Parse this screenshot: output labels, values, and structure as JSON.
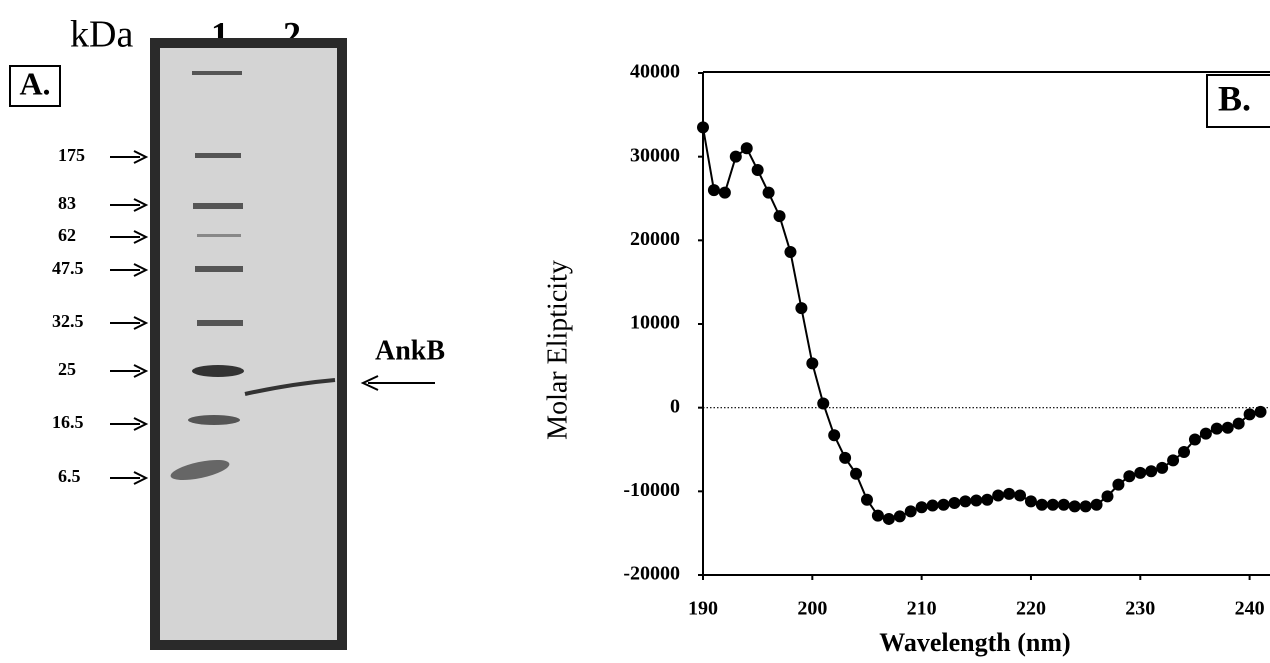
{
  "panel_a": {
    "label": "A.",
    "unit": "kDa",
    "lanes": [
      "1",
      "2"
    ],
    "markers": [
      "175",
      "83",
      "62",
      "47.5",
      "32.5",
      "25",
      "16.5",
      "6.5"
    ],
    "band_label": "AnkB"
  },
  "chart_data": {
    "type": "line",
    "panel_label": "B.",
    "x_label": "Wavelength (nm)",
    "y_label": "Molar Elipticity",
    "x": [
      190,
      191,
      192,
      193,
      194,
      195,
      196,
      197,
      198,
      199,
      200,
      201,
      202,
      203,
      204,
      205,
      206,
      207,
      208,
      209,
      210,
      211,
      212,
      213,
      214,
      215,
      216,
      217,
      218,
      219,
      220,
      221,
      222,
      223,
      224,
      225,
      226,
      227,
      228,
      229,
      230,
      231,
      232,
      233,
      234,
      235,
      236,
      237,
      238,
      239,
      240,
      241
    ],
    "values": [
      33500,
      26000,
      25700,
      30000,
      31000,
      28400,
      25700,
      22900,
      18600,
      11900,
      5300,
      500,
      -3300,
      -6000,
      -7900,
      -11000,
      -12900,
      -13300,
      -13000,
      -12400,
      -11900,
      -11700,
      -11600,
      -11400,
      -11200,
      -11100,
      -11000,
      -10500,
      -10300,
      -10500,
      -11200,
      -11600,
      -11600,
      -11600,
      -11800,
      -11800,
      -11600,
      -10600,
      -9200,
      -8200,
      -7800,
      -7600,
      -7200,
      -6300,
      -5300,
      -3800,
      -3100,
      -2500,
      -2400,
      -1900,
      -800,
      -500
    ],
    "color": "#000000",
    "xlim": [
      190,
      241.5
    ],
    "xticks": [
      190,
      200,
      210,
      220,
      230,
      240
    ],
    "ylim": [
      -20000,
      40000
    ],
    "yticks": [
      -20000,
      -10000,
      0,
      10000,
      20000,
      30000,
      40000
    ],
    "zero_line": true
  }
}
